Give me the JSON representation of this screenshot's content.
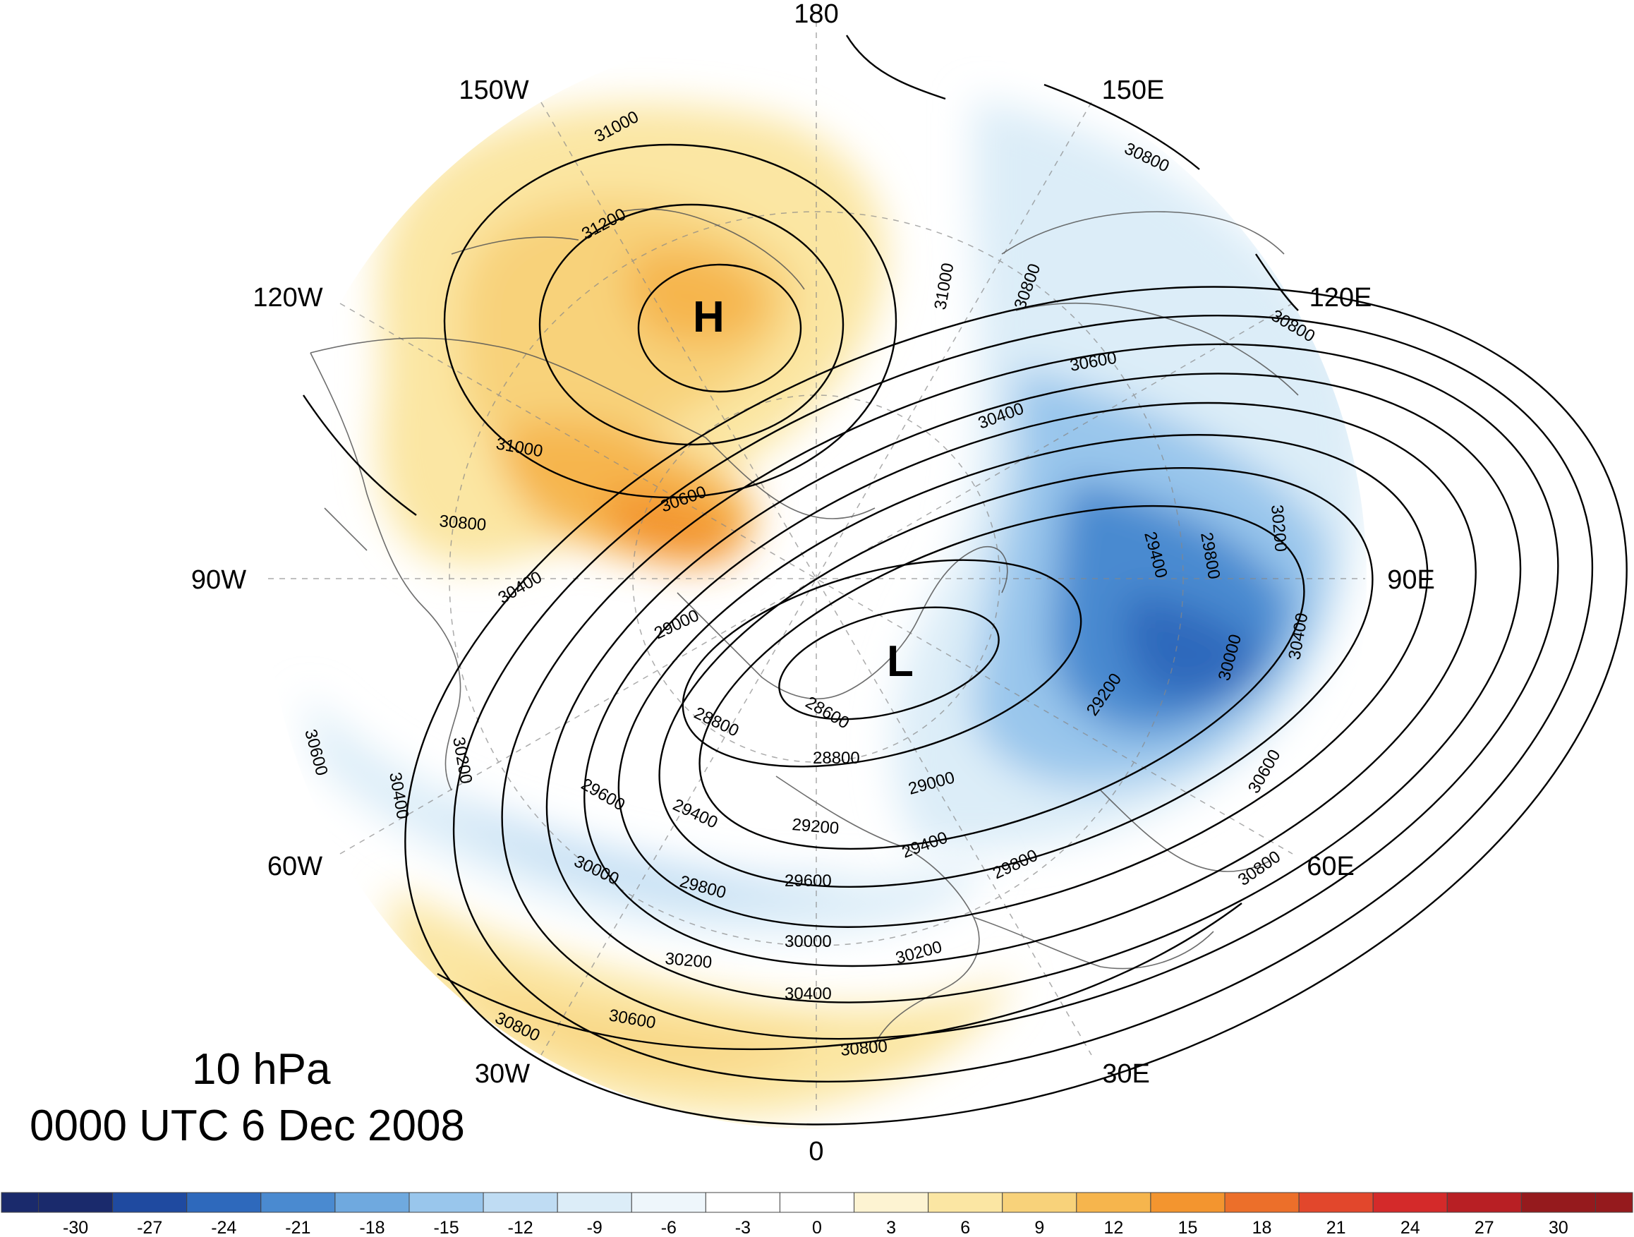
{
  "title": {
    "level": "10 hPa",
    "time": "0000 UTC 6 Dec 2008"
  },
  "longitude_labels": [
    "180",
    "150E",
    "120E",
    "90E",
    "60E",
    "30E",
    "0",
    "30W",
    "60W",
    "90W",
    "120W",
    "150W"
  ],
  "centers": [
    {
      "label": "H",
      "type": "high"
    },
    {
      "label": "L",
      "type": "low"
    }
  ],
  "contour_labels": [
    "31000",
    "31200",
    "31000",
    "30800",
    "30800",
    "30800",
    "30600",
    "30400",
    "31000",
    "30800",
    "30600",
    "30400",
    "29400",
    "29800",
    "30200",
    "29000",
    "28600",
    "28800",
    "28800",
    "29000",
    "29200",
    "30000",
    "30400",
    "30600",
    "30800",
    "30200",
    "30400",
    "30600",
    "29600",
    "29400",
    "29200",
    "29400",
    "29800",
    "30000",
    "29800",
    "29600",
    "30000",
    "30200",
    "30200",
    "30400",
    "30600",
    "30800",
    "30800"
  ],
  "colorbar": {
    "labels": [
      "-30",
      "-27",
      "-24",
      "-21",
      "-18",
      "-15",
      "-12",
      "-9",
      "-6",
      "-3",
      "0",
      "3",
      "6",
      "9",
      "12",
      "15",
      "18",
      "21",
      "24",
      "27",
      "30"
    ],
    "colors": [
      "#1a2a6c",
      "#1f4aa0",
      "#2e69bc",
      "#4a8ad0",
      "#6fa9df",
      "#99c6ec",
      "#bfdcf3",
      "#dcedf8",
      "#eef6fb",
      "#ffffff",
      "#ffffff",
      "#fdf3d2",
      "#fbe6a3",
      "#f8d27a",
      "#f6b54d",
      "#f3952f",
      "#ec6f2a",
      "#e2472c",
      "#d42a2a",
      "#b81f24",
      "#951a1d"
    ]
  }
}
